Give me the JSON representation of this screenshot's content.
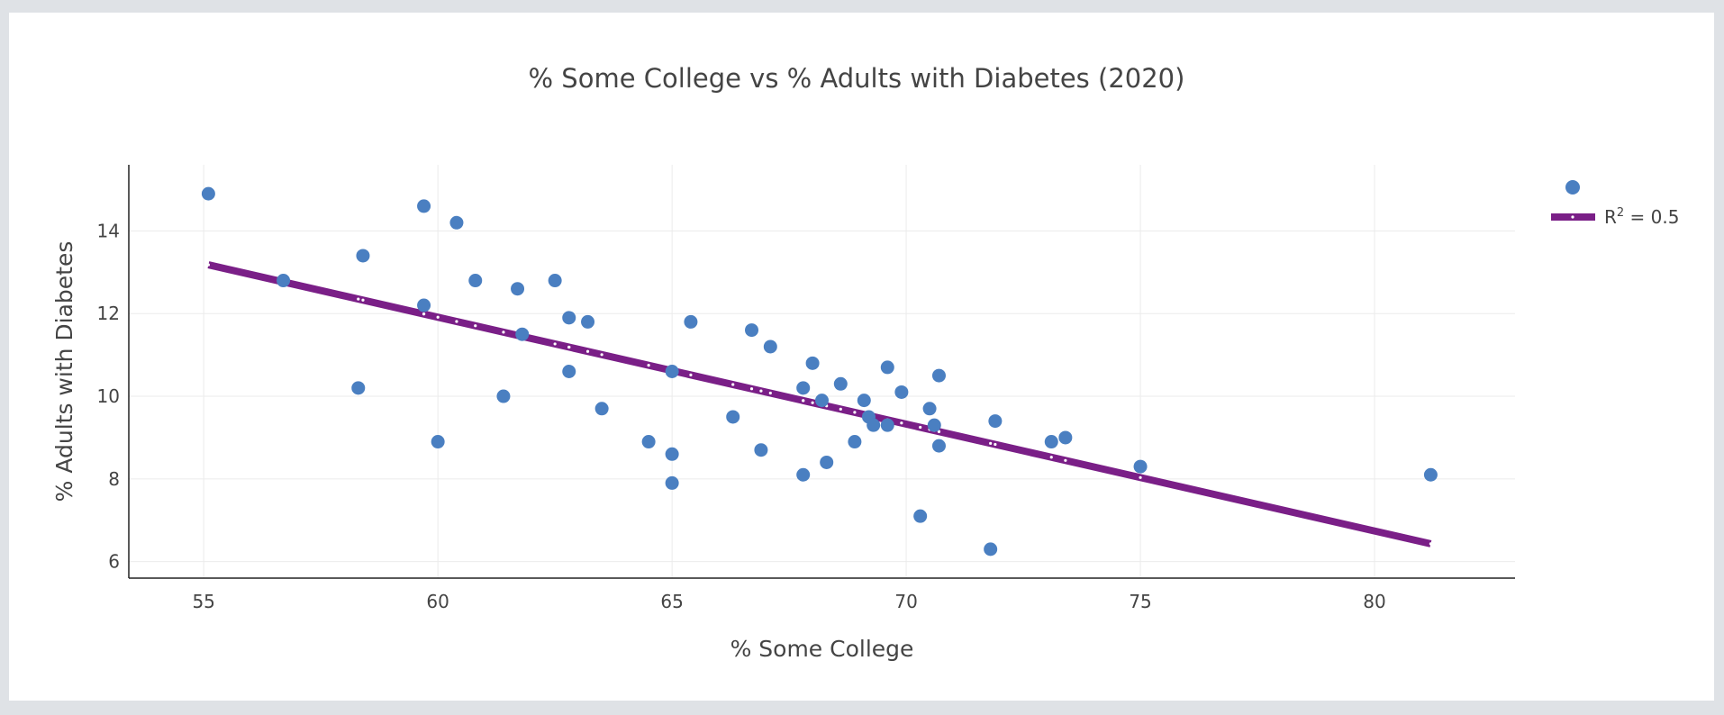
{
  "chart_data": {
    "type": "scatter",
    "title": "% Some College vs % Adults with Diabetes (2020)",
    "xlabel": "% Some College",
    "ylabel": "% Adults with Diabetes",
    "xlim": [
      53.4,
      83.0
    ],
    "ylim": [
      5.6,
      15.6
    ],
    "xticks": [
      55,
      60,
      65,
      70,
      75,
      80
    ],
    "yticks": [
      6,
      8,
      10,
      12,
      14
    ],
    "grid": true,
    "legend_position": "top-right",
    "colors": {
      "points": "#4a7fc1",
      "trend": "#7a1f87",
      "axis": "#222222",
      "grid": "#ebebeb"
    },
    "series": [
      {
        "kind": "scatter",
        "x": [
          55.1,
          56.7,
          58.3,
          58.4,
          59.7,
          59.7,
          60.0,
          60.4,
          60.8,
          61.4,
          61.7,
          61.8,
          62.5,
          62.8,
          62.8,
          63.2,
          63.5,
          64.5,
          65.0,
          65.0,
          65.0,
          65.4,
          66.3,
          66.7,
          66.9,
          67.1,
          67.8,
          67.8,
          68.0,
          68.2,
          68.3,
          68.6,
          68.9,
          69.1,
          69.2,
          69.3,
          69.6,
          69.6,
          69.9,
          70.3,
          70.5,
          70.6,
          70.7,
          70.7,
          71.8,
          71.9,
          73.1,
          73.4,
          75.0,
          81.2
        ],
        "y": [
          14.9,
          12.8,
          10.2,
          13.4,
          14.6,
          12.2,
          8.9,
          14.2,
          12.8,
          10.0,
          12.6,
          11.5,
          12.8,
          11.9,
          10.6,
          11.8,
          9.7,
          8.9,
          10.6,
          8.6,
          7.9,
          11.8,
          9.5,
          11.6,
          8.7,
          11.2,
          10.2,
          8.1,
          10.8,
          9.9,
          8.4,
          10.3,
          8.9,
          9.9,
          9.5,
          9.3,
          10.7,
          9.3,
          10.1,
          7.1,
          9.7,
          9.3,
          10.5,
          8.8,
          6.3,
          9.4,
          8.9,
          9.0,
          8.3,
          8.1
        ]
      },
      {
        "kind": "trendline",
        "label_main": "R",
        "label_sup": "2",
        "label_rest": " = 0.5",
        "x": [
          55.1,
          81.2
        ],
        "y": [
          13.18,
          6.43
        ]
      }
    ]
  }
}
